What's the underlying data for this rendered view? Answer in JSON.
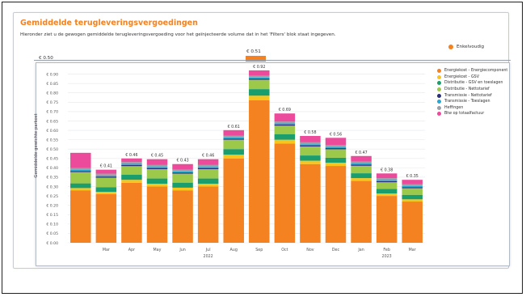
{
  "page": {
    "title": "Gemiddelde terugleveringsvergoedingen",
    "subtitle": "Hieronder ziet u de gewogen gemiddelde terugleveringsvergoeding voor het geïnjecteerde volume dat in het 'Filters' blok staat ingegeven."
  },
  "background_chart": {
    "legend_label": "Enkelvoudig",
    "y_tick_top": "€ 0.50",
    "bar_label": "€ 0.51"
  },
  "colors": {
    "orange": "#f58220",
    "yellow": "#f7c51e",
    "green": "#1a9e6e",
    "lime": "#9cc94a",
    "navy": "#2b2f7a",
    "teal": "#25a9d6",
    "gray": "#9aa0a8",
    "pink": "#ec4a9a"
  },
  "chart_data": {
    "type": "bar",
    "stacked": true,
    "ylabel": "Gemiddelde gewichte parkost",
    "ylim": [
      0,
      0.95
    ],
    "yticks": [
      "€ 0.00",
      "€ 0.05",
      "€ 0.10",
      "€ 0.15",
      "€ 0.20",
      "€ 0.25",
      "€ 0.30",
      "€ 0.35",
      "€ 0.40",
      "€ 0.45",
      "€ 0.50",
      "€ 0.55",
      "€ 0.60",
      "€ 0.65",
      "€ 0.70",
      "€ 0.75",
      "€ 0.80",
      "€ 0.85",
      "€ 0.90"
    ],
    "ytick_values": [
      0,
      0.05,
      0.1,
      0.15,
      0.2,
      0.25,
      0.3,
      0.35,
      0.4,
      0.45,
      0.5,
      0.55,
      0.6,
      0.65,
      0.7,
      0.75,
      0.8,
      0.85,
      0.9
    ],
    "categories": [
      "",
      "Mar",
      "Apr",
      "May",
      "Jun",
      "Jul",
      "Aug",
      "Sep",
      "Oct",
      "Nov",
      "Dec",
      "Jan",
      "Feb",
      "Mar"
    ],
    "year_labels": [
      {
        "label": "2022",
        "category_index": 5
      },
      {
        "label": "2023",
        "category_index": 12
      }
    ],
    "totals": [
      0.48,
      0.41,
      0.46,
      0.45,
      0.43,
      0.46,
      0.61,
      0.92,
      0.69,
      0.58,
      0.56,
      0.47,
      0.38,
      0.35
    ],
    "total_labels": [
      "",
      "€ 0.41",
      "€ 0.46",
      "€ 0.45",
      "€ 0.43",
      "€ 0.46",
      "€ 0.61",
      "€ 0.92",
      "€ 0.69",
      "€ 0.58",
      "€ 0.56",
      "€ 0.47",
      "€ 0.38",
      "€ 0.35"
    ],
    "legend_position": "top-right",
    "grid": true,
    "series": [
      {
        "name": "Energiekost - Energiecomponent",
        "color": "#f58220",
        "values": [
          0.28,
          0.26,
          0.32,
          0.3,
          0.28,
          0.3,
          0.45,
          0.76,
          0.53,
          0.42,
          0.41,
          0.33,
          0.25,
          0.22
        ]
      },
      {
        "name": "Energiekost - GSV",
        "color": "#f7c51e",
        "values": [
          0.012,
          0.012,
          0.016,
          0.015,
          0.014,
          0.015,
          0.02,
          0.025,
          0.02,
          0.018,
          0.017,
          0.015,
          0.013,
          0.012
        ]
      },
      {
        "name": "Distributie - GSV en toeslagen",
        "color": "#1a9e6e",
        "values": [
          0.025,
          0.025,
          0.028,
          0.028,
          0.027,
          0.028,
          0.03,
          0.035,
          0.03,
          0.028,
          0.027,
          0.026,
          0.025,
          0.024
        ]
      },
      {
        "name": "Distributie - Nettotarief",
        "color": "#9cc94a",
        "values": [
          0.06,
          0.05,
          0.045,
          0.05,
          0.048,
          0.05,
          0.05,
          0.05,
          0.045,
          0.048,
          0.045,
          0.04,
          0.035,
          0.035
        ]
      },
      {
        "name": "Transmissie - Nettotarief",
        "color": "#2b2f7a",
        "values": [
          0.006,
          0.006,
          0.006,
          0.006,
          0.006,
          0.006,
          0.006,
          0.006,
          0.006,
          0.006,
          0.006,
          0.006,
          0.006,
          0.006
        ]
      },
      {
        "name": "Transmissie - Toeslagen",
        "color": "#25a9d6",
        "values": [
          0.006,
          0.006,
          0.006,
          0.006,
          0.006,
          0.006,
          0.006,
          0.006,
          0.006,
          0.006,
          0.006,
          0.006,
          0.006,
          0.006
        ]
      },
      {
        "name": "Heffingen",
        "color": "#9aa0a8",
        "values": [
          0.01,
          0.01,
          0.01,
          0.01,
          0.01,
          0.01,
          0.01,
          0.01,
          0.01,
          0.01,
          0.01,
          0.01,
          0.01,
          0.01
        ]
      },
      {
        "name": "Btw op totaalfactuur",
        "color": "#ec4a9a",
        "values": [
          0.081,
          0.021,
          0.019,
          0.031,
          0.029,
          0.031,
          0.029,
          0.028,
          0.043,
          0.034,
          0.039,
          0.03,
          0.025,
          0.023
        ]
      }
    ]
  }
}
